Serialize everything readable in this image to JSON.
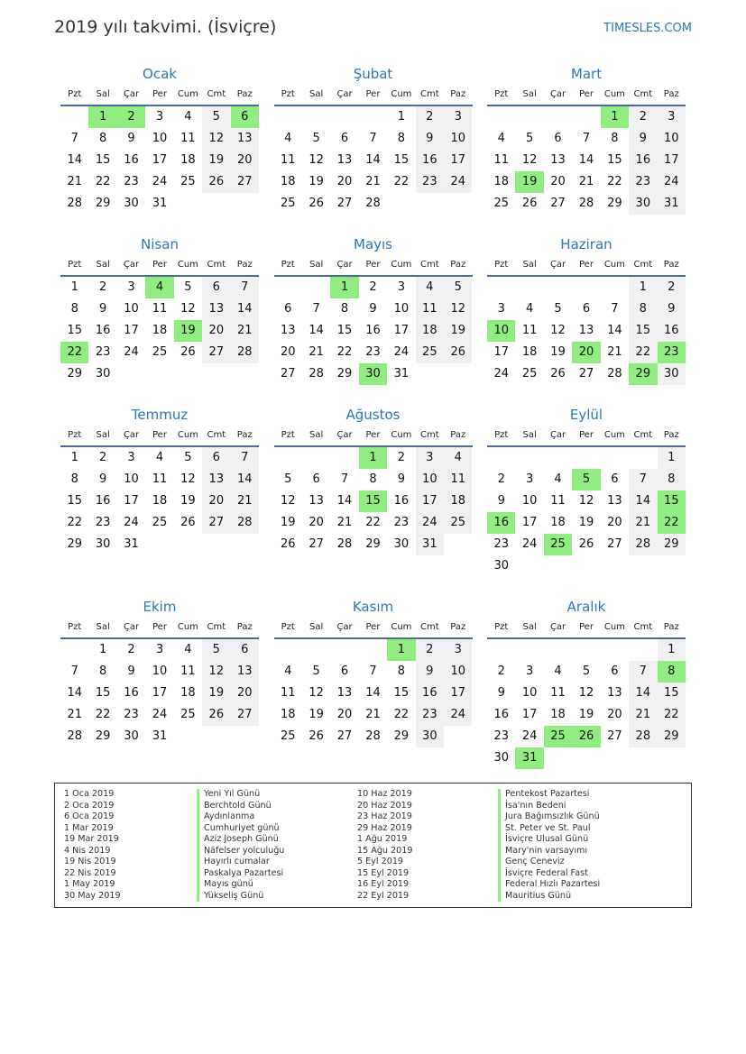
{
  "header": {
    "title": "2019 yılı takvimi. (İsviçre)",
    "brand": "TIMESLES.COM"
  },
  "weekdays": [
    "Pzt",
    "Sal",
    "Çar",
    "Per",
    "Cum",
    "Cmt",
    "Paz"
  ],
  "colors": {
    "accent": "#2a77c0",
    "holiday": "#90ee80",
    "weekend": "#f1f1f1"
  },
  "months": [
    {
      "name": "Ocak",
      "offset": 1,
      "days": 31,
      "holidays": [
        1,
        2,
        6
      ]
    },
    {
      "name": "Şubat",
      "offset": 4,
      "days": 28,
      "holidays": []
    },
    {
      "name": "Mart",
      "offset": 4,
      "days": 31,
      "holidays": [
        1,
        19
      ]
    },
    {
      "name": "Nisan",
      "offset": 0,
      "days": 30,
      "holidays": [
        4,
        19,
        22
      ]
    },
    {
      "name": "Mayıs",
      "offset": 2,
      "days": 31,
      "holidays": [
        1,
        30
      ]
    },
    {
      "name": "Haziran",
      "offset": 5,
      "days": 30,
      "holidays": [
        10,
        20,
        23,
        29
      ]
    },
    {
      "name": "Temmuz",
      "offset": 0,
      "days": 31,
      "holidays": []
    },
    {
      "name": "Ağustos",
      "offset": 3,
      "days": 31,
      "holidays": [
        1,
        15
      ]
    },
    {
      "name": "Eylül",
      "offset": 6,
      "days": 30,
      "holidays": [
        5,
        15,
        16,
        22,
        25
      ]
    },
    {
      "name": "Ekim",
      "offset": 1,
      "days": 31,
      "holidays": []
    },
    {
      "name": "Kasım",
      "offset": 4,
      "days": 30,
      "holidays": [
        1
      ]
    },
    {
      "name": "Aralık",
      "offset": 6,
      "days": 31,
      "holidays": [
        8,
        25,
        26,
        31
      ]
    }
  ],
  "holidays": [
    {
      "date": "1 Oca 2019",
      "name": "Yeni Yıl Günü"
    },
    {
      "date": "2 Oca 2019",
      "name": "Berchtold Günü"
    },
    {
      "date": "6 Oca 2019",
      "name": "Aydınlanma"
    },
    {
      "date": "1 Mar 2019",
      "name": "Cumhuriyet günü"
    },
    {
      "date": "19 Mar 2019",
      "name": "Aziz Joseph Günü"
    },
    {
      "date": "4 Nis 2019",
      "name": "Näfelser yolculuğu"
    },
    {
      "date": "19 Nis 2019",
      "name": "Hayırlı cumalar"
    },
    {
      "date": "22 Nis 2019",
      "name": "Paskalya Pazartesi"
    },
    {
      "date": "1 May 2019",
      "name": "Mayıs günü"
    },
    {
      "date": "30 May 2019",
      "name": "Yükseliş Günü"
    },
    {
      "date": "10 Haz 2019",
      "name": "Pentekost Pazartesi"
    },
    {
      "date": "20 Haz 2019",
      "name": "İsa'nın Bedeni"
    },
    {
      "date": "23 Haz 2019",
      "name": "Jura Bağımsızlık Günü"
    },
    {
      "date": "29 Haz 2019",
      "name": "St. Peter ve St. Paul"
    },
    {
      "date": "1 Ağu 2019",
      "name": "İsviçre Ulusal Günü"
    },
    {
      "date": "15 Ağu 2019",
      "name": "Mary'nin varsayımı"
    },
    {
      "date": "5 Eyl 2019",
      "name": "Genç Ceneviz"
    },
    {
      "date": "15 Eyl 2019",
      "name": "İsviçre Federal Fast"
    },
    {
      "date": "16 Eyl 2019",
      "name": "Federal Hızlı Pazartesi"
    },
    {
      "date": "22 Eyl 2019",
      "name": "Mauritius Günü"
    }
  ]
}
